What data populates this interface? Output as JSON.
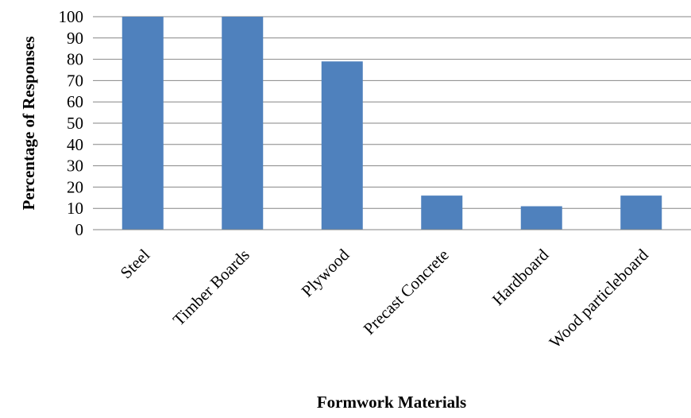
{
  "chart_data": {
    "type": "bar",
    "title": "",
    "xlabel": "Formwork Materials",
    "ylabel": "Percentage of Responses",
    "categories": [
      "Steel",
      "Timber Boards",
      "Plywood",
      "Precast Concrete",
      "Hardboard",
      "Wood particleboard"
    ],
    "values": [
      100,
      100,
      79,
      16,
      11,
      16
    ],
    "ylim": [
      0,
      100
    ],
    "yticks": [
      "0",
      "10",
      "20",
      "30",
      "40",
      "50",
      "60",
      "70",
      "80",
      "90",
      "100"
    ],
    "grid": true,
    "legend": "none",
    "bar_color": "#4F81BD",
    "grid_color": "#868686"
  }
}
